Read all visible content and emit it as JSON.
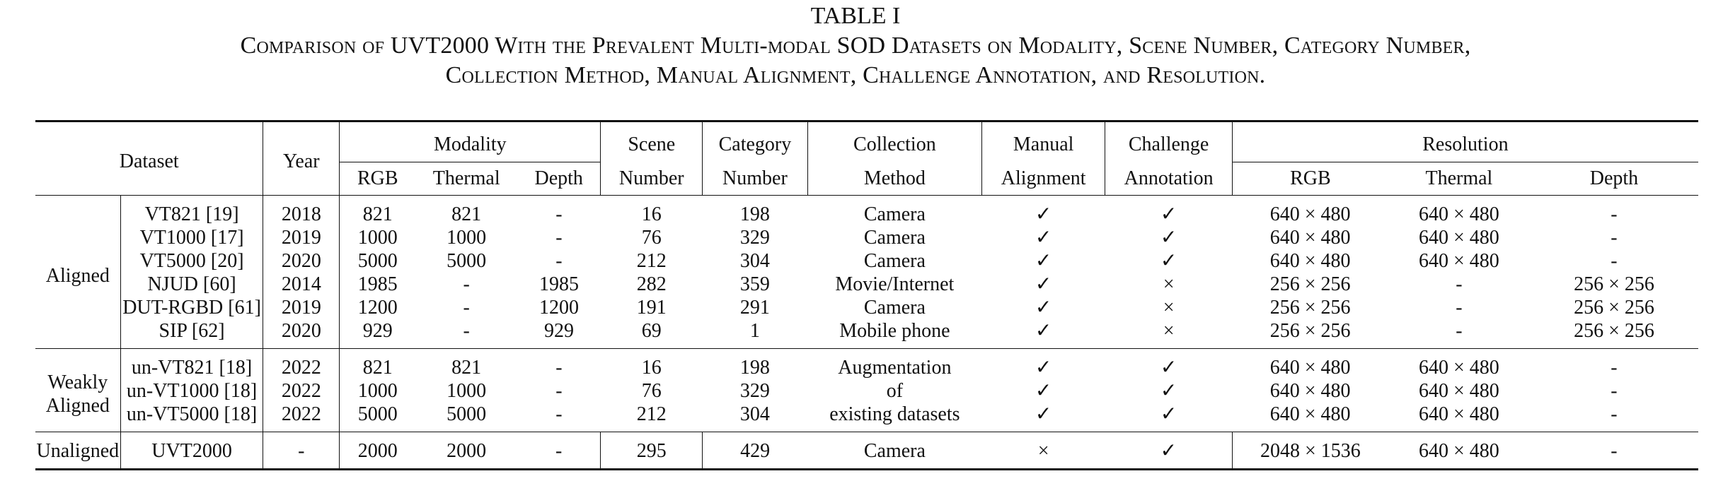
{
  "caption": {
    "label": "TABLE I",
    "line1": "Comparison of UVT2000 With the Prevalent Multi-modal SOD Datasets on Modality, Scene Number, Category Number,",
    "line2": "Collection Method, Manual Alignment, Challenge Annotation, and Resolution."
  },
  "header": {
    "dataset": "Dataset",
    "year": "Year",
    "modality": "Modality",
    "mod_rgb": "RGB",
    "mod_thermal": "Thermal",
    "mod_depth": "Depth",
    "scene_1": "Scene",
    "scene_2": "Number",
    "category_1": "Category",
    "category_2": "Number",
    "collection_1": "Collection",
    "collection_2": "Method",
    "manual_1": "Manual",
    "manual_2": "Alignment",
    "challenge_1": "Challenge",
    "challenge_2": "Annotation",
    "resolution": "Resolution",
    "res_rgb": "RGB",
    "res_thermal": "Thermal",
    "res_depth": "Depth"
  },
  "groups": [
    {
      "name_lines": [
        "Aligned"
      ],
      "rows": [
        {
          "dataset": "VT821 [19]",
          "year": "2018",
          "rgb": "821",
          "thermal": "821",
          "depth": "-",
          "scene": "16",
          "category": "198",
          "method": "Camera",
          "manual": "✓",
          "challenge": "✓",
          "res_rgb": "640 × 480",
          "res_thermal": "640 × 480",
          "res_depth": "-"
        },
        {
          "dataset": "VT1000 [17]",
          "year": "2019",
          "rgb": "1000",
          "thermal": "1000",
          "depth": "-",
          "scene": "76",
          "category": "329",
          "method": "Camera",
          "manual": "✓",
          "challenge": "✓",
          "res_rgb": "640 × 480",
          "res_thermal": "640 × 480",
          "res_depth": "-"
        },
        {
          "dataset": "VT5000 [20]",
          "year": "2020",
          "rgb": "5000",
          "thermal": "5000",
          "depth": "-",
          "scene": "212",
          "category": "304",
          "method": "Camera",
          "manual": "✓",
          "challenge": "✓",
          "res_rgb": "640 × 480",
          "res_thermal": "640 × 480",
          "res_depth": "-"
        },
        {
          "dataset": "NJUD [60]",
          "year": "2014",
          "rgb": "1985",
          "thermal": "-",
          "depth": "1985",
          "scene": "282",
          "category": "359",
          "method": "Movie/Internet",
          "manual": "✓",
          "challenge": "×",
          "res_rgb": "256 × 256",
          "res_thermal": "-",
          "res_depth": "256 × 256"
        },
        {
          "dataset": "DUT-RGBD [61]",
          "year": "2019",
          "rgb": "1200",
          "thermal": "-",
          "depth": "1200",
          "scene": "191",
          "category": "291",
          "method": "Camera",
          "manual": "✓",
          "challenge": "×",
          "res_rgb": "256 × 256",
          "res_thermal": "-",
          "res_depth": "256 × 256"
        },
        {
          "dataset": "SIP [62]",
          "year": "2020",
          "rgb": "929",
          "thermal": "-",
          "depth": "929",
          "scene": "69",
          "category": "1",
          "method": "Mobile phone",
          "manual": "✓",
          "challenge": "×",
          "res_rgb": "256 × 256",
          "res_thermal": "-",
          "res_depth": "256 × 256"
        }
      ]
    },
    {
      "name_lines": [
        "Weakly",
        "Aligned"
      ],
      "method_lines": [
        "Augmentation",
        "of",
        "existing datasets"
      ],
      "rows": [
        {
          "dataset": "un-VT821 [18]",
          "year": "2022",
          "rgb": "821",
          "thermal": "821",
          "depth": "-",
          "scene": "16",
          "category": "198",
          "manual": "✓",
          "challenge": "✓",
          "res_rgb": "640 × 480",
          "res_thermal": "640 × 480",
          "res_depth": "-"
        },
        {
          "dataset": "un-VT1000 [18]",
          "year": "2022",
          "rgb": "1000",
          "thermal": "1000",
          "depth": "-",
          "scene": "76",
          "category": "329",
          "manual": "✓",
          "challenge": "✓",
          "res_rgb": "640 × 480",
          "res_thermal": "640 × 480",
          "res_depth": "-"
        },
        {
          "dataset": "un-VT5000 [18]",
          "year": "2022",
          "rgb": "5000",
          "thermal": "5000",
          "depth": "-",
          "scene": "212",
          "category": "304",
          "manual": "✓",
          "challenge": "✓",
          "res_rgb": "640 × 480",
          "res_thermal": "640 × 480",
          "res_depth": "-"
        }
      ]
    },
    {
      "name_lines": [
        "Unaligned"
      ],
      "rows": [
        {
          "dataset": "UVT2000",
          "year": "-",
          "rgb": "2000",
          "thermal": "2000",
          "depth": "-",
          "scene": "295",
          "category": "429",
          "method": "Camera",
          "manual": "×",
          "challenge": "✓",
          "res_rgb": "2048 × 1536",
          "res_thermal": "640 × 480",
          "res_depth": "-"
        }
      ]
    }
  ]
}
